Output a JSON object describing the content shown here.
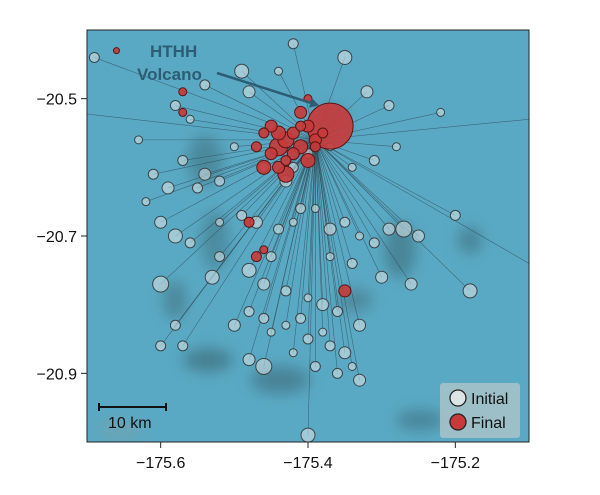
{
  "chart_data": {
    "type": "scatter",
    "title": "",
    "xlabel": "",
    "ylabel": "",
    "xlim": [
      -175.7,
      -175.1
    ],
    "ylim": [
      -21.0,
      -20.4
    ],
    "x_ticks": [
      -175.6,
      -175.4,
      -175.2
    ],
    "x_tick_labels": [
      "−175.6",
      "−175.4",
      "−175.2"
    ],
    "y_ticks": [
      -20.5,
      -20.7,
      -20.9
    ],
    "y_tick_labels": [
      "−20.5",
      "−20.7",
      "−20.9"
    ],
    "grid": false,
    "legend_position": "bottom-right",
    "annotation": {
      "text_line1": "HTHH",
      "text_line2": "Volcano",
      "target": [
        -175.385,
        -20.51
      ]
    },
    "scale_bar_label": "10 km",
    "hub": [
      -175.39,
      -20.56
    ],
    "colors": {
      "background": "#5aa9c4",
      "initial_fill": "#dde4e6",
      "initial_stroke": "#3a4448",
      "final_fill": "#c83a3a",
      "final_stroke": "#5a1414",
      "link": "#2f4a55",
      "annotation": "#2d5d74"
    },
    "series": [
      {
        "name": "Initial",
        "points": [
          [
            -175.69,
            -20.44,
            5
          ],
          [
            -175.63,
            -20.56,
            4
          ],
          [
            -175.56,
            -20.53,
            4
          ],
          [
            -175.58,
            -20.51,
            5
          ],
          [
            -175.54,
            -20.48,
            5
          ],
          [
            -175.49,
            -20.46,
            7
          ],
          [
            -175.48,
            -20.49,
            6
          ],
          [
            -175.44,
            -20.46,
            4
          ],
          [
            -175.42,
            -20.42,
            5
          ],
          [
            -175.35,
            -20.44,
            7
          ],
          [
            -175.32,
            -20.49,
            6
          ],
          [
            -175.29,
            -20.51,
            5
          ],
          [
            -175.22,
            -20.52,
            4
          ],
          [
            -175.28,
            -20.57,
            4
          ],
          [
            -175.31,
            -20.59,
            5
          ],
          [
            -175.34,
            -20.6,
            4
          ],
          [
            -175.57,
            -20.59,
            5
          ],
          [
            -175.59,
            -20.63,
            6
          ],
          [
            -175.61,
            -20.61,
            5
          ],
          [
            -175.62,
            -20.65,
            4
          ],
          [
            -175.54,
            -20.61,
            6
          ],
          [
            -175.52,
            -20.62,
            5
          ],
          [
            -175.46,
            -20.6,
            5
          ],
          [
            -175.43,
            -20.62,
            6
          ],
          [
            -175.42,
            -20.6,
            5
          ],
          [
            -175.4,
            -20.58,
            5
          ],
          [
            -175.37,
            -20.57,
            4
          ],
          [
            -175.5,
            -20.57,
            4
          ],
          [
            -175.55,
            -20.63,
            5
          ],
          [
            -175.6,
            -20.68,
            6
          ],
          [
            -175.58,
            -20.7,
            7
          ],
          [
            -175.56,
            -20.71,
            5
          ],
          [
            -175.52,
            -20.68,
            4
          ],
          [
            -175.49,
            -20.67,
            5
          ],
          [
            -175.47,
            -20.68,
            6
          ],
          [
            -175.44,
            -20.69,
            5
          ],
          [
            -175.42,
            -20.68,
            4
          ],
          [
            -175.41,
            -20.66,
            5
          ],
          [
            -175.39,
            -20.66,
            4
          ],
          [
            -175.37,
            -20.69,
            6
          ],
          [
            -175.35,
            -20.68,
            5
          ],
          [
            -175.33,
            -20.7,
            4
          ],
          [
            -175.31,
            -20.71,
            5
          ],
          [
            -175.29,
            -20.69,
            6
          ],
          [
            -175.27,
            -20.69,
            8
          ],
          [
            -175.25,
            -20.7,
            6
          ],
          [
            -175.2,
            -20.67,
            5
          ],
          [
            -175.37,
            -20.73,
            4
          ],
          [
            -175.34,
            -20.74,
            5
          ],
          [
            -175.3,
            -20.76,
            6
          ],
          [
            -175.45,
            -20.73,
            5
          ],
          [
            -175.48,
            -20.75,
            7
          ],
          [
            -175.52,
            -20.73,
            5
          ],
          [
            -175.53,
            -20.76,
            7
          ],
          [
            -175.46,
            -20.77,
            6
          ],
          [
            -175.43,
            -20.78,
            5
          ],
          [
            -175.4,
            -20.79,
            4
          ],
          [
            -175.38,
            -20.8,
            6
          ],
          [
            -175.36,
            -20.81,
            5
          ],
          [
            -175.33,
            -20.83,
            6
          ],
          [
            -175.26,
            -20.77,
            6
          ],
          [
            -175.18,
            -20.78,
            7
          ],
          [
            -175.6,
            -20.77,
            8
          ],
          [
            -175.58,
            -20.83,
            5
          ],
          [
            -175.6,
            -20.86,
            5
          ],
          [
            -175.57,
            -20.86,
            5
          ],
          [
            -175.5,
            -20.83,
            6
          ],
          [
            -175.48,
            -20.81,
            5
          ],
          [
            -175.46,
            -20.82,
            5
          ],
          [
            -175.45,
            -20.84,
            4
          ],
          [
            -175.43,
            -20.83,
            4
          ],
          [
            -175.41,
            -20.82,
            5
          ],
          [
            -175.4,
            -20.85,
            5
          ],
          [
            -175.38,
            -20.84,
            4
          ],
          [
            -175.37,
            -20.86,
            5
          ],
          [
            -175.35,
            -20.87,
            6
          ],
          [
            -175.34,
            -20.89,
            4
          ],
          [
            -175.33,
            -20.91,
            6
          ],
          [
            -175.36,
            -20.9,
            5
          ],
          [
            -175.39,
            -20.89,
            5
          ],
          [
            -175.48,
            -20.88,
            6
          ],
          [
            -175.46,
            -20.89,
            8
          ],
          [
            -175.42,
            -20.87,
            4
          ],
          [
            -175.4,
            -20.99,
            7
          ]
        ]
      },
      {
        "name": "Final",
        "points": [
          [
            -175.37,
            -20.54,
            23
          ],
          [
            -175.41,
            -20.52,
            6
          ],
          [
            -175.4,
            -20.5,
            4
          ],
          [
            -175.66,
            -20.43,
            3
          ],
          [
            -175.57,
            -20.49,
            4
          ],
          [
            -175.57,
            -20.52,
            4
          ],
          [
            -175.46,
            -20.55,
            5
          ],
          [
            -175.45,
            -20.54,
            6
          ],
          [
            -175.44,
            -20.55,
            7
          ],
          [
            -175.43,
            -20.56,
            8
          ],
          [
            -175.42,
            -20.55,
            6
          ],
          [
            -175.41,
            -20.57,
            7
          ],
          [
            -175.44,
            -20.57,
            9
          ],
          [
            -175.42,
            -20.58,
            6
          ],
          [
            -175.45,
            -20.58,
            6
          ],
          [
            -175.47,
            -20.57,
            5
          ],
          [
            -175.43,
            -20.59,
            5
          ],
          [
            -175.4,
            -20.59,
            7
          ],
          [
            -175.4,
            -20.54,
            6
          ],
          [
            -175.38,
            -20.55,
            5
          ],
          [
            -175.39,
            -20.56,
            6
          ],
          [
            -175.39,
            -20.57,
            5
          ],
          [
            -175.41,
            -20.54,
            5
          ],
          [
            -175.44,
            -20.6,
            6
          ],
          [
            -175.46,
            -20.6,
            7
          ],
          [
            -175.43,
            -20.61,
            8
          ],
          [
            -175.48,
            -20.68,
            5
          ],
          [
            -175.46,
            -20.72,
            4
          ],
          [
            -175.47,
            -20.73,
            5
          ],
          [
            -175.35,
            -20.78,
            6
          ]
        ]
      }
    ]
  },
  "legend": {
    "initial_label": "Initial",
    "final_label": "Final"
  }
}
